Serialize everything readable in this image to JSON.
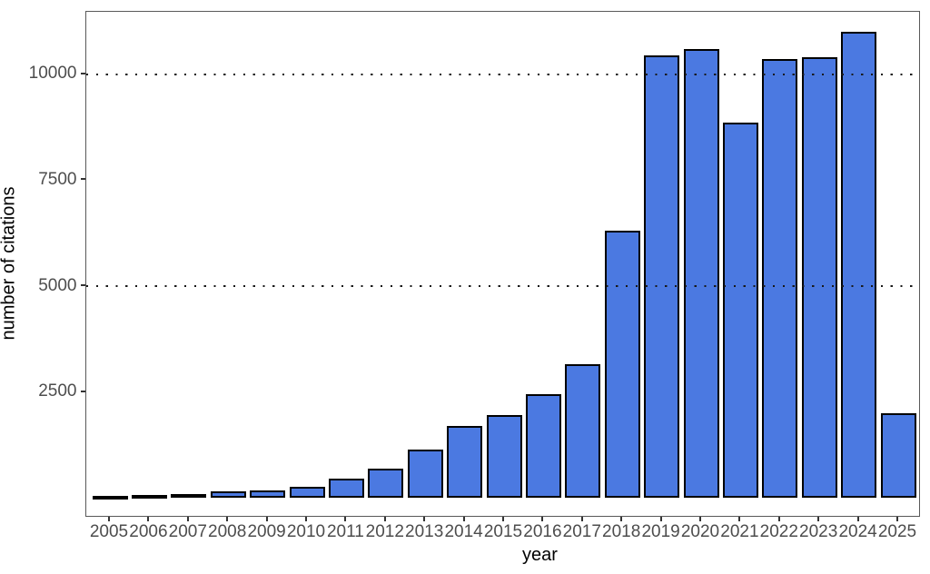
{
  "chart_data": {
    "type": "bar",
    "title": "",
    "xlabel": "year",
    "ylabel": "number of citations",
    "categories": [
      "2005",
      "2006",
      "2007",
      "2008",
      "2009",
      "2010",
      "2011",
      "2012",
      "2013",
      "2014",
      "2015",
      "2016",
      "2017",
      "2018",
      "2019",
      "2020",
      "2021",
      "2022",
      "2023",
      "2024",
      "2025"
    ],
    "values": [
      50,
      80,
      100,
      150,
      190,
      270,
      450,
      700,
      1150,
      1700,
      1950,
      2450,
      3150,
      6300,
      10450,
      10600,
      8850,
      10350,
      10400,
      11000,
      2000
    ],
    "yticks": [
      2500,
      5000,
      7500,
      10000
    ],
    "ytick_labels": [
      "2500",
      "5000",
      "7500",
      "10000"
    ],
    "gridlines_at": [
      5000,
      10000
    ],
    "gridline_style": "dotted, drawn over bars",
    "ylim": [
      0,
      11580
    ],
    "legend": "none",
    "colors": {
      "bar_fill": "#4b79e1",
      "bar_border": "#000000",
      "panel_border": "#595959",
      "gridline": "#1a1a1a",
      "tick_label": "#4d4d4d",
      "axis_title": "#000000",
      "background": "#ffffff"
    }
  }
}
